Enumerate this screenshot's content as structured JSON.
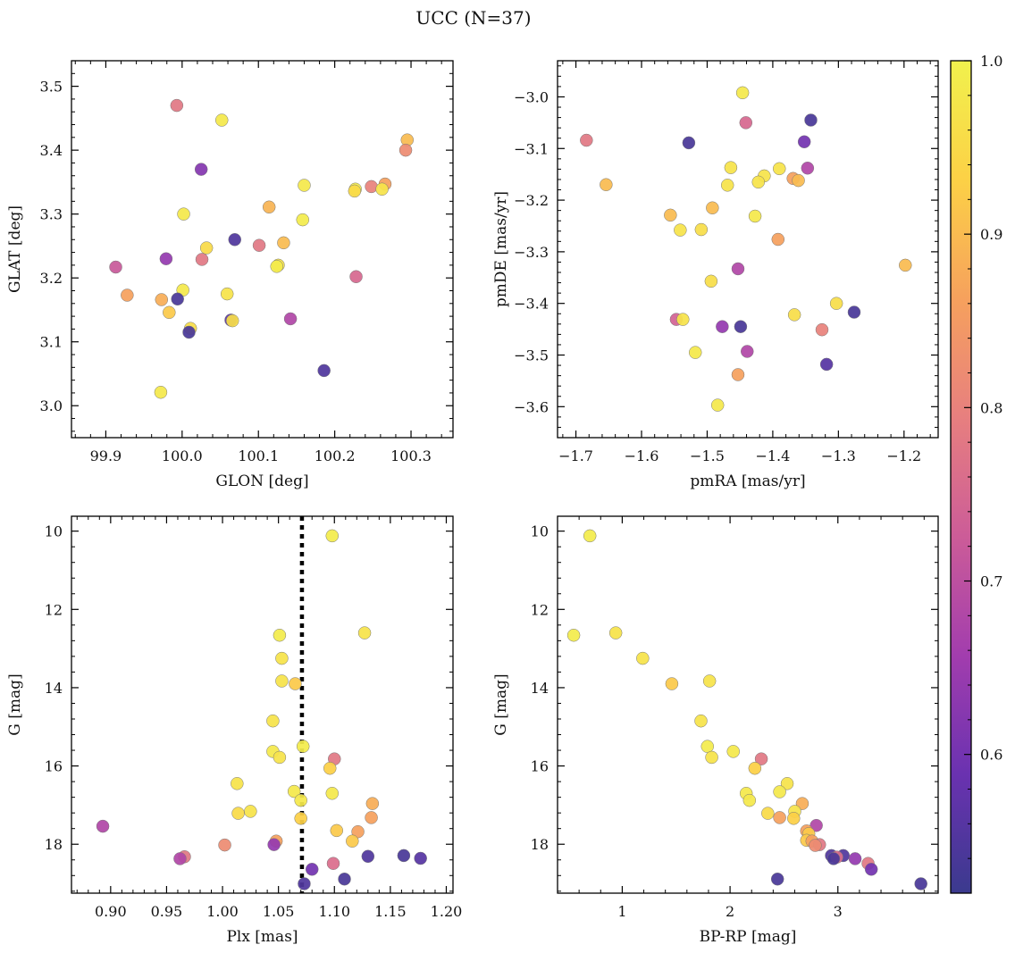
{
  "figure": {
    "title": "UCC (N=37)"
  },
  "colorbar": {
    "range": [
      0.52,
      1.0
    ],
    "ticks": [
      0.6,
      0.7,
      0.8,
      0.9,
      1.0
    ],
    "tick_labels": [
      "0.6",
      "0.7",
      "0.8",
      "0.9",
      "1.0"
    ],
    "colormap": "plasma",
    "colormap_stops": [
      "#3b3a8e",
      "#6a32b0",
      "#a23dae",
      "#cc5c98",
      "#e77f7f",
      "#f6a15d",
      "#fcd146",
      "#f1f14d"
    ]
  },
  "chart_data": [
    {
      "type": "scatter",
      "id": "p1",
      "xlabel": "GLON [deg]",
      "ylabel": "GLAT [deg]",
      "xlim": [
        99.855,
        100.355
      ],
      "ylim": [
        2.95,
        3.54
      ],
      "y_inverted": false,
      "xticks": [
        99.9,
        100.0,
        100.1,
        100.2,
        100.3
      ],
      "xtick_labels": [
        "99.9",
        "100.0",
        "100.1",
        "100.2",
        "100.3"
      ],
      "yticks": [
        3.0,
        3.1,
        3.2,
        3.3,
        3.4,
        3.5
      ],
      "ytick_labels": [
        "3.0",
        "3.1",
        "3.2",
        "3.3",
        "3.4",
        "3.5"
      ],
      "points": [
        [
          99.993,
          3.47,
          0.78
        ],
        [
          100.052,
          3.447,
          0.98
        ],
        [
          100.295,
          3.416,
          0.9
        ],
        [
          100.293,
          3.4,
          0.82
        ],
        [
          100.025,
          3.37,
          0.62
        ],
        [
          100.266,
          3.347,
          0.86
        ],
        [
          100.248,
          3.343,
          0.8
        ],
        [
          100.16,
          3.345,
          0.98
        ],
        [
          100.227,
          3.339,
          0.99
        ],
        [
          100.262,
          3.339,
          0.97
        ],
        [
          100.226,
          3.336,
          0.95
        ],
        [
          100.114,
          3.311,
          0.89
        ],
        [
          100.002,
          3.3,
          0.98
        ],
        [
          100.158,
          3.291,
          0.99
        ],
        [
          100.069,
          3.26,
          0.55
        ],
        [
          100.133,
          3.255,
          0.9
        ],
        [
          100.101,
          3.251,
          0.78
        ],
        [
          100.032,
          3.247,
          0.95
        ],
        [
          100.026,
          3.229,
          0.78
        ],
        [
          99.979,
          3.23,
          0.64
        ],
        [
          100.126,
          3.22,
          0.97
        ],
        [
          100.124,
          3.218,
          0.99
        ],
        [
          99.913,
          3.217,
          0.72
        ],
        [
          100.228,
          3.202,
          0.75
        ],
        [
          100.001,
          3.181,
          0.98
        ],
        [
          99.928,
          3.173,
          0.86
        ],
        [
          100.059,
          3.175,
          0.97
        ],
        [
          99.973,
          3.166,
          0.88
        ],
        [
          99.994,
          3.167,
          0.54
        ],
        [
          99.983,
          3.146,
          0.92
        ],
        [
          100.064,
          3.134,
          0.57
        ],
        [
          100.066,
          3.133,
          0.96
        ],
        [
          100.142,
          3.136,
          0.68
        ],
        [
          100.011,
          3.121,
          0.96
        ],
        [
          100.009,
          3.115,
          0.54
        ],
        [
          100.186,
          3.055,
          0.55
        ],
        [
          99.972,
          3.021,
          0.98
        ]
      ]
    },
    {
      "type": "scatter",
      "id": "p2",
      "xlabel": "pmRA [mas/yr]",
      "ylabel": "pmDE [mas/yr]",
      "xlim": [
        -1.728,
        -1.148
      ],
      "ylim": [
        -3.66,
        -2.93
      ],
      "y_inverted": false,
      "xticks": [
        -1.7,
        -1.6,
        -1.5,
        -1.4,
        -1.3,
        -1.2
      ],
      "xtick_labels": [
        "−1.7",
        "−1.6",
        "−1.5",
        "−1.4",
        "−1.3",
        "−1.2"
      ],
      "yticks": [
        -3.6,
        -3.5,
        -3.4,
        -3.3,
        -3.2,
        -3.1,
        -3.0
      ],
      "ytick_labels": [
        "−3.6",
        "−3.5",
        "−3.4",
        "−3.3",
        "−3.2",
        "−3.1",
        "−3.0"
      ],
      "points": [
        [
          -1.446,
          -2.992,
          0.98
        ],
        [
          -1.342,
          -3.045,
          0.54
        ],
        [
          -1.441,
          -3.05,
          0.75
        ],
        [
          -1.684,
          -3.084,
          0.78
        ],
        [
          -1.528,
          -3.089,
          0.54
        ],
        [
          -1.352,
          -3.087,
          0.6
        ],
        [
          -1.464,
          -3.137,
          0.97
        ],
        [
          -1.347,
          -3.138,
          0.68
        ],
        [
          -1.39,
          -3.139,
          0.97
        ],
        [
          -1.413,
          -3.153,
          0.97
        ],
        [
          -1.369,
          -3.158,
          0.86
        ],
        [
          -1.361,
          -3.162,
          0.9
        ],
        [
          -1.422,
          -3.165,
          0.97
        ],
        [
          -1.654,
          -3.17,
          0.9
        ],
        [
          -1.469,
          -3.171,
          0.97
        ],
        [
          -1.492,
          -3.215,
          0.9
        ],
        [
          -1.556,
          -3.229,
          0.9
        ],
        [
          -1.427,
          -3.231,
          0.98
        ],
        [
          -1.541,
          -3.258,
          0.97
        ],
        [
          -1.509,
          -3.257,
          0.96
        ],
        [
          -1.392,
          -3.276,
          0.86
        ],
        [
          -1.198,
          -3.326,
          0.9
        ],
        [
          -1.453,
          -3.333,
          0.68
        ],
        [
          -1.494,
          -3.357,
          0.96
        ],
        [
          -1.303,
          -3.4,
          0.96
        ],
        [
          -1.276,
          -3.417,
          0.54
        ],
        [
          -1.367,
          -3.422,
          0.96
        ],
        [
          -1.547,
          -3.431,
          0.74
        ],
        [
          -1.537,
          -3.431,
          0.97
        ],
        [
          -1.477,
          -3.445,
          0.64
        ],
        [
          -1.449,
          -3.445,
          0.54
        ],
        [
          -1.325,
          -3.451,
          0.8
        ],
        [
          -1.439,
          -3.493,
          0.68
        ],
        [
          -1.518,
          -3.495,
          0.98
        ],
        [
          -1.318,
          -3.518,
          0.56
        ],
        [
          -1.453,
          -3.538,
          0.86
        ],
        [
          -1.484,
          -3.597,
          0.98
        ]
      ]
    },
    {
      "type": "scatter",
      "id": "p3",
      "xlabel": "Plx [mas]",
      "ylabel": "G [mag]",
      "xlim": [
        0.865,
        1.206
      ],
      "ylim": [
        9.62,
        19.25
      ],
      "y_inverted": true,
      "vline": {
        "x": 1.071,
        "style": "dotted",
        "color": "#000000"
      },
      "xticks": [
        0.9,
        0.95,
        1.0,
        1.05,
        1.1,
        1.15,
        1.2
      ],
      "xtick_labels": [
        "0.90",
        "0.95",
        "1.00",
        "1.05",
        "1.10",
        "1.15",
        "1.20"
      ],
      "yticks": [
        10,
        12,
        14,
        16,
        18
      ],
      "ytick_labels": [
        "10",
        "12",
        "14",
        "16",
        "18"
      ],
      "points": [
        [
          1.098,
          10.12,
          0.99
        ],
        [
          1.127,
          12.6,
          0.97
        ],
        [
          1.051,
          12.66,
          0.99
        ],
        [
          1.053,
          13.25,
          0.97
        ],
        [
          1.065,
          13.9,
          0.92
        ],
        [
          1.053,
          13.83,
          0.97
        ],
        [
          1.045,
          14.85,
          0.97
        ],
        [
          1.072,
          15.5,
          0.99
        ],
        [
          1.045,
          15.63,
          0.98
        ],
        [
          1.051,
          15.78,
          0.97
        ],
        [
          1.1,
          15.82,
          0.78
        ],
        [
          1.096,
          16.06,
          0.93
        ],
        [
          1.013,
          16.45,
          0.97
        ],
        [
          1.098,
          16.7,
          0.98
        ],
        [
          1.064,
          16.65,
          0.98
        ],
        [
          1.07,
          16.88,
          0.98
        ],
        [
          1.134,
          16.96,
          0.88
        ],
        [
          1.025,
          17.16,
          0.97
        ],
        [
          1.014,
          17.21,
          0.95
        ],
        [
          1.07,
          17.34,
          0.93
        ],
        [
          1.133,
          17.32,
          0.86
        ],
        [
          1.102,
          17.65,
          0.92
        ],
        [
          1.121,
          17.68,
          0.86
        ],
        [
          1.116,
          17.92,
          0.92
        ],
        [
          1.048,
          17.92,
          0.86
        ],
        [
          0.893,
          17.54,
          0.68
        ],
        [
          1.002,
          18.02,
          0.82
        ],
        [
          1.046,
          18.01,
          0.64
        ],
        [
          1.099,
          18.49,
          0.76
        ],
        [
          1.08,
          18.64,
          0.6
        ],
        [
          0.966,
          18.32,
          0.78
        ],
        [
          0.962,
          18.37,
          0.68
        ],
        [
          1.13,
          18.31,
          0.55
        ],
        [
          1.162,
          18.29,
          0.54
        ],
        [
          1.177,
          18.36,
          0.56
        ],
        [
          1.109,
          18.89,
          0.54
        ],
        [
          1.073,
          19.01,
          0.55
        ]
      ]
    },
    {
      "type": "scatter",
      "id": "p4",
      "xlabel": "BP-RP [mag]",
      "ylabel": "G [mag]",
      "xlim": [
        0.4,
        3.93
      ],
      "ylim": [
        9.62,
        19.25
      ],
      "y_inverted": true,
      "xticks": [
        1,
        2,
        3
      ],
      "xtick_labels": [
        "1",
        "2",
        "3"
      ],
      "yticks": [
        10,
        12,
        14,
        16,
        18
      ],
      "ytick_labels": [
        "10",
        "12",
        "14",
        "16",
        "18"
      ],
      "points": [
        [
          0.7,
          10.12,
          0.99
        ],
        [
          0.55,
          12.66,
          0.99
        ],
        [
          0.94,
          12.6,
          0.97
        ],
        [
          1.19,
          13.25,
          0.97
        ],
        [
          1.46,
          13.9,
          0.92
        ],
        [
          1.81,
          13.83,
          0.97
        ],
        [
          1.73,
          14.85,
          0.97
        ],
        [
          1.79,
          15.5,
          0.99
        ],
        [
          1.83,
          15.78,
          0.97
        ],
        [
          2.03,
          15.63,
          0.98
        ],
        [
          2.29,
          15.82,
          0.78
        ],
        [
          2.23,
          16.06,
          0.93
        ],
        [
          2.53,
          16.45,
          0.97
        ],
        [
          2.46,
          16.66,
          0.98
        ],
        [
          2.15,
          16.7,
          0.98
        ],
        [
          2.18,
          16.88,
          0.98
        ],
        [
          2.67,
          16.96,
          0.88
        ],
        [
          2.6,
          17.16,
          0.97
        ],
        [
          2.35,
          17.21,
          0.95
        ],
        [
          2.46,
          17.32,
          0.86
        ],
        [
          2.59,
          17.34,
          0.93
        ],
        [
          2.8,
          17.52,
          0.68
        ],
        [
          2.71,
          17.66,
          0.86
        ],
        [
          2.73,
          17.73,
          0.92
        ],
        [
          2.71,
          17.9,
          0.92
        ],
        [
          2.76,
          17.92,
          0.86
        ],
        [
          2.83,
          18.01,
          0.78
        ],
        [
          2.79,
          18.03,
          0.82
        ],
        [
          2.94,
          18.29,
          0.55
        ],
        [
          3.05,
          18.29,
          0.55
        ],
        [
          2.99,
          18.33,
          0.76
        ],
        [
          3.16,
          18.37,
          0.64
        ],
        [
          2.96,
          18.37,
          0.54
        ],
        [
          3.28,
          18.49,
          0.78
        ],
        [
          3.31,
          18.64,
          0.6
        ],
        [
          2.44,
          18.89,
          0.54
        ],
        [
          3.77,
          19.01,
          0.54
        ]
      ]
    }
  ]
}
